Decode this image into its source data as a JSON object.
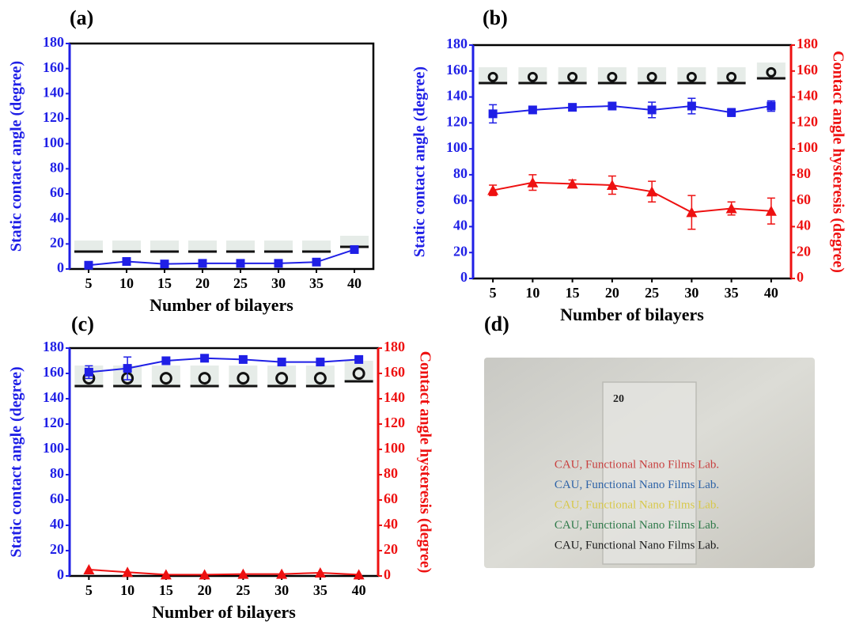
{
  "chart_data": [
    {
      "type": "line",
      "label": "(a)",
      "x_label": "Number of bilayers",
      "y_label": "Static contact angle (degree)",
      "categories": [
        "5",
        "10",
        "15",
        "20",
        "25",
        "30",
        "35",
        "40"
      ],
      "ylim": [
        0,
        180
      ],
      "yticks": [
        0,
        20,
        40,
        60,
        80,
        100,
        120,
        140,
        160,
        180
      ],
      "series": [
        {
          "color": "#1f1fe6",
          "marker": "square",
          "values": [
            3,
            6,
            4,
            4.5,
            4.5,
            4.5,
            5.5,
            15.5
          ]
        }
      ]
    },
    {
      "type": "line",
      "label": "(b)",
      "x_label": "Number of bilayers",
      "y_label": "Static contact angle (degree)",
      "y2_label": "Contact angle hysteresis (degree)",
      "categories": [
        "5",
        "10",
        "15",
        "20",
        "25",
        "30",
        "35",
        "40"
      ],
      "ylim": [
        0,
        180
      ],
      "yticks": [
        0,
        20,
        40,
        60,
        80,
        100,
        120,
        140,
        160,
        180
      ],
      "y2lim": [
        0,
        180
      ],
      "y2ticks": [
        0,
        20,
        40,
        60,
        80,
        100,
        120,
        140,
        160,
        180
      ],
      "series": [
        {
          "color": "#1f1fe6",
          "marker": "square",
          "values": [
            127,
            130,
            132,
            133,
            130,
            133,
            128,
            133
          ],
          "errors": [
            7,
            2,
            2,
            2,
            6,
            6,
            3,
            4
          ]
        },
        {
          "color": "#ee1111",
          "marker": "triangle",
          "axis": "y2",
          "values": [
            68,
            74,
            73,
            72,
            67,
            51,
            54,
            52
          ],
          "errors": [
            4,
            6,
            3,
            7,
            8,
            13,
            5,
            10
          ]
        }
      ]
    },
    {
      "type": "line",
      "label": "(c)",
      "x_label": "Number of bilayers",
      "y_label": "Static contact angle (degree)",
      "y2_label": "Contact angle hysteresis (degree)",
      "categories": [
        "5",
        "10",
        "15",
        "20",
        "25",
        "30",
        "35",
        "40"
      ],
      "ylim": [
        0,
        180
      ],
      "yticks": [
        0,
        20,
        40,
        60,
        80,
        100,
        120,
        140,
        160,
        180
      ],
      "y2lim": [
        0,
        180
      ],
      "y2ticks": [
        0,
        20,
        40,
        60,
        80,
        100,
        120,
        140,
        160,
        180
      ],
      "series": [
        {
          "color": "#1f1fe6",
          "marker": "square",
          "values": [
            161,
            164,
            170,
            172,
            171,
            169,
            169,
            171
          ],
          "errors": [
            5,
            9,
            1,
            1,
            2,
            1,
            1,
            1
          ]
        },
        {
          "color": "#ee1111",
          "marker": "triangle",
          "axis": "y2",
          "values": [
            5,
            3,
            1,
            1,
            1.5,
            1.5,
            2.5,
            1
          ]
        }
      ]
    }
  ],
  "photo": {
    "label": "(d)",
    "slide_label": "20",
    "lines": [
      "CAU, Functional Nano Films Lab.",
      "CAU, Functional Nano Films Lab.",
      "CAU, Functional Nano Films Lab.",
      "CAU, Functional Nano Films Lab.",
      "CAU, Functional Nano Films Lab."
    ],
    "line_colors": [
      "#c8403f",
      "#2d63a8",
      "#d8c84a",
      "#2f7a4a",
      "#1b1b1b"
    ]
  }
}
